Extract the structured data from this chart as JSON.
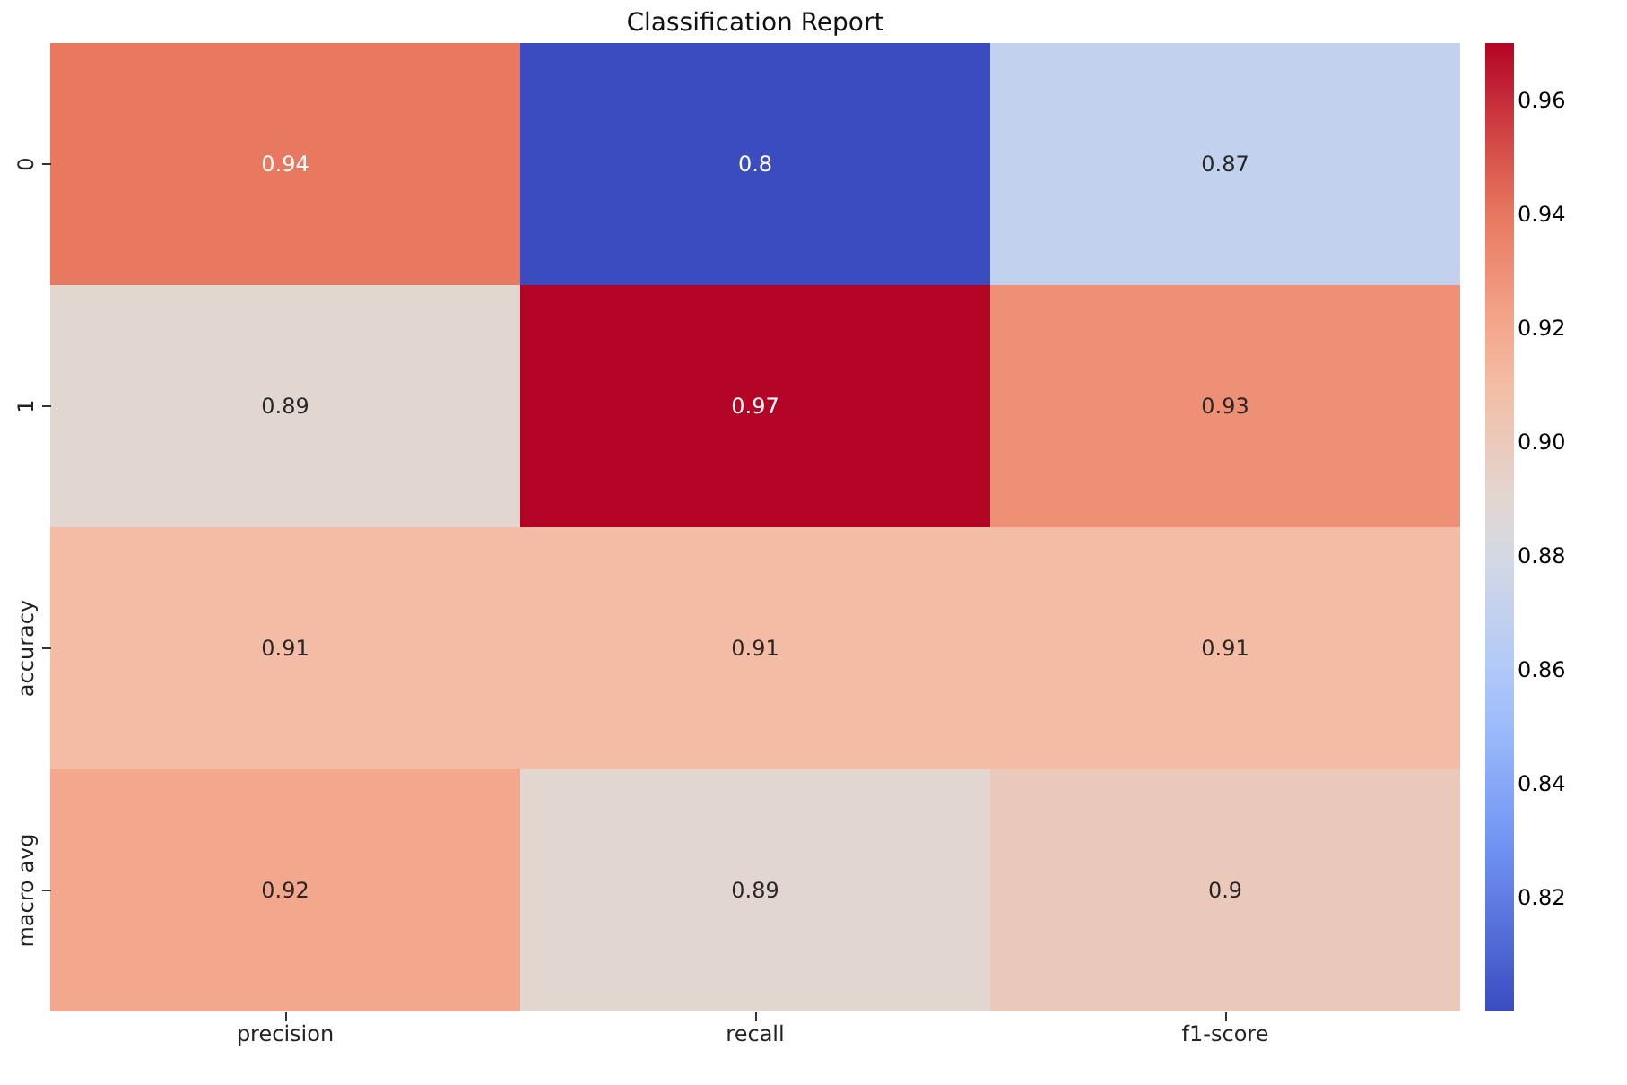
{
  "chart_data": {
    "type": "heatmap",
    "title": "Classification Report",
    "categories": [
      "precision",
      "recall",
      "f1-score"
    ],
    "y_categories": [
      "0",
      "1",
      "accuracy",
      "macro avg"
    ],
    "cells": [
      [
        0.94,
        0.8,
        0.87
      ],
      [
        0.89,
        0.97,
        0.93
      ],
      [
        0.91,
        0.91,
        0.91
      ],
      [
        0.92,
        0.89,
        0.9
      ]
    ],
    "data_labels": true,
    "clim": [
      0.8,
      0.97
    ],
    "cticks": [
      0.82,
      0.84,
      0.86,
      0.88,
      {
        "value": 0.9,
        "label": "0.90"
      },
      0.92,
      0.94,
      0.96
    ]
  }
}
